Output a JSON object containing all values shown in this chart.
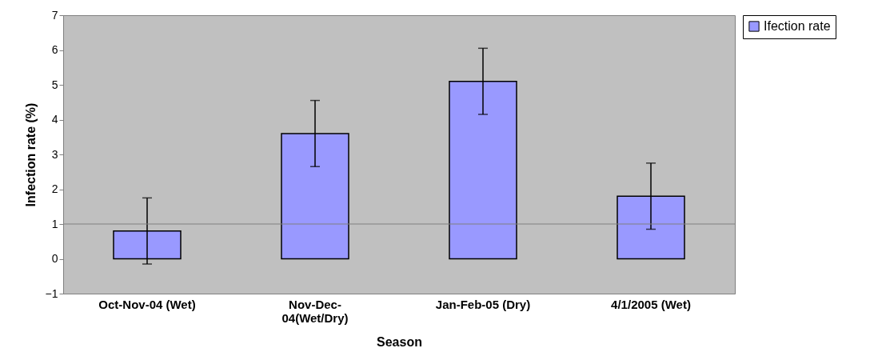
{
  "chart_data": {
    "type": "bar",
    "xlabel": "Season",
    "ylabel": "Infection rate (%)",
    "categories": [
      "Oct-Nov-04 (Wet)",
      "Nov-Dec-04(Wet/Dry)",
      "Jan-Feb-05 (Dry)",
      "4/1/2005 (Wet)"
    ],
    "series": [
      {
        "name": "Ifection rate",
        "color": "#9999ff",
        "values": [
          0.8,
          3.6,
          5.1,
          1.8
        ],
        "errors": [
          0.95,
          0.95,
          0.95,
          0.95
        ]
      }
    ],
    "ylim": [
      -1,
      7
    ],
    "yticks": [
      -1,
      0,
      1,
      2,
      3,
      4,
      5,
      6,
      7
    ],
    "ref_lines": [
      {
        "axis": "y",
        "value": 1,
        "color": "#808080"
      }
    ],
    "grid": false,
    "legend": "right"
  }
}
